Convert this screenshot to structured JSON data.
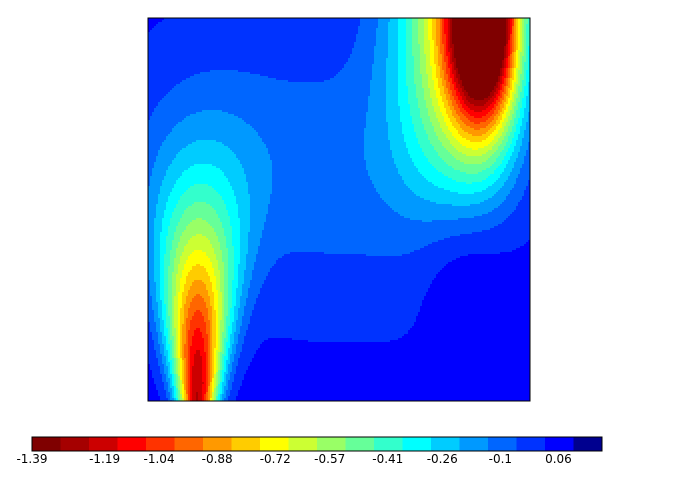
{
  "chart_data": {
    "type": "contour",
    "colors": [
      "#7f0000",
      "#a50000",
      "#cc0000",
      "#ff0000",
      "#ff3300",
      "#ff6600",
      "#ff9900",
      "#ffcc00",
      "#ffff00",
      "#ccff33",
      "#99ff66",
      "#66ff99",
      "#33ffcc",
      "#00ffff",
      "#00ccff",
      "#0099ff",
      "#0066ff",
      "#0033ff",
      "#0000ff",
      "#00008f"
    ],
    "clim": [
      -1.39,
      0.18
    ],
    "colorbar_ticks": [
      -1.39,
      -1.19,
      -1.04,
      -0.88,
      -0.72,
      -0.57,
      -0.41,
      -0.26,
      -0.1,
      0.06
    ]
  }
}
